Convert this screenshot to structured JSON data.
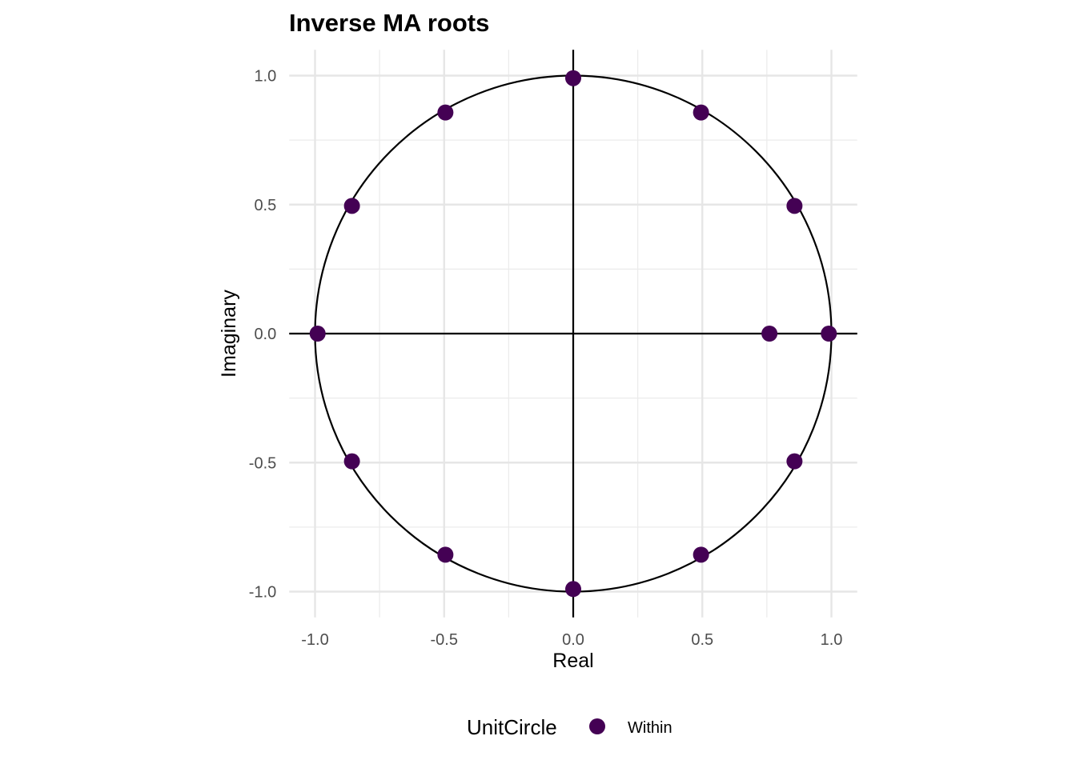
{
  "chart_data": {
    "type": "scatter",
    "title": "Inverse MA roots",
    "xlabel": "Real",
    "ylabel": "Imaginary",
    "xlim": [
      -1.1,
      1.1
    ],
    "ylim": [
      -1.1,
      1.1
    ],
    "x_ticks": [
      -1.0,
      -0.5,
      0.0,
      0.5,
      1.0
    ],
    "y_ticks": [
      -1.0,
      -0.5,
      0.0,
      0.5,
      1.0
    ],
    "x_tick_labels": [
      "-1.0",
      "-0.5",
      "0.0",
      "0.5",
      "1.0"
    ],
    "y_tick_labels": [
      "-1.0",
      "-0.5",
      "0.0",
      "0.5",
      "1.0"
    ],
    "grid": true,
    "unit_circle": true,
    "reference_lines": {
      "x": 0,
      "y": 0
    },
    "legend": {
      "title": "UnitCircle",
      "position": "bottom",
      "entries": [
        {
          "label": "Within",
          "color": "#440154"
        }
      ]
    },
    "series": [
      {
        "name": "Within",
        "color": "#440154",
        "points": [
          {
            "x": 0.0,
            "y": 0.99
          },
          {
            "x": 0.495,
            "y": 0.857
          },
          {
            "x": 0.857,
            "y": 0.495
          },
          {
            "x": 0.99,
            "y": 0.0
          },
          {
            "x": 0.76,
            "y": 0.0
          },
          {
            "x": 0.857,
            "y": -0.495
          },
          {
            "x": 0.495,
            "y": -0.857
          },
          {
            "x": 0.0,
            "y": -0.99
          },
          {
            "x": -0.495,
            "y": -0.857
          },
          {
            "x": -0.857,
            "y": -0.495
          },
          {
            "x": -0.99,
            "y": 0.0
          },
          {
            "x": -0.857,
            "y": 0.495
          },
          {
            "x": -0.495,
            "y": 0.857
          }
        ]
      }
    ]
  }
}
